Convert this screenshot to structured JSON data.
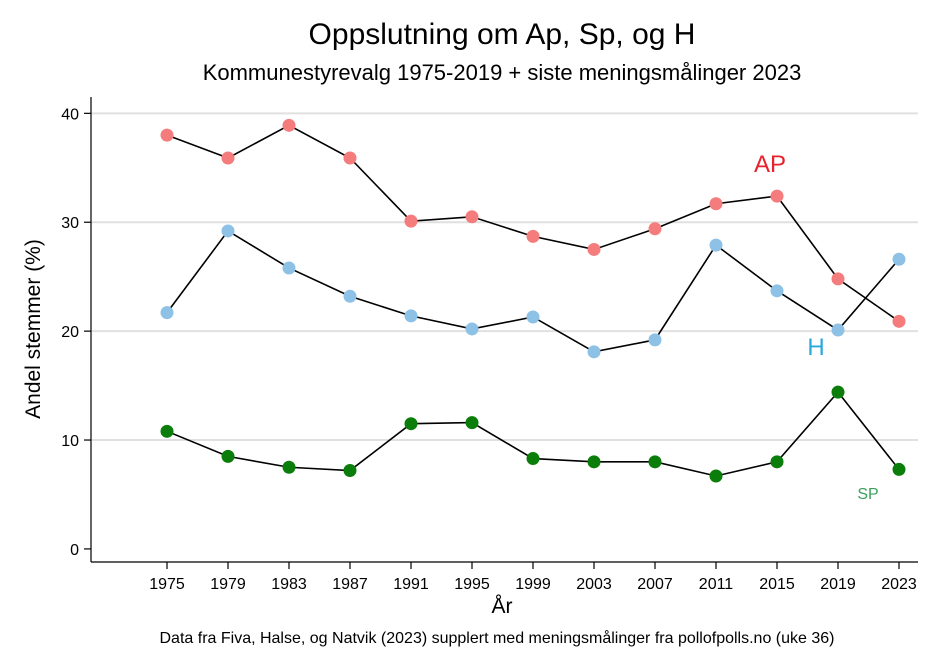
{
  "chart_data": {
    "type": "line",
    "title": "Oppslutning om Ap, Sp, og H",
    "subtitle": "Kommunestyrevalg 1975-2019 + siste meningsmålinger 2023",
    "xlabel": "År",
    "ylabel": "Andel stemmer (%)",
    "note": "Data fra Fiva, Halse, og Natvik (2023) supplert med meningsmålinger fra pollofpolls.no (uke 36)",
    "x": [
      "1975",
      "1979",
      "1983",
      "1987",
      "1991",
      "1995",
      "1999",
      "2003",
      "2007",
      "2011",
      "2015",
      "2019",
      "2023"
    ],
    "yticks": [
      0,
      10,
      20,
      30,
      40
    ],
    "ylim": [
      -1.2,
      41.5
    ],
    "grid": true,
    "series": [
      {
        "name": "AP",
        "color": "#f47c7c",
        "label_color": "#e8222a",
        "values": [
          38.0,
          35.9,
          38.9,
          35.9,
          30.1,
          30.5,
          28.7,
          27.5,
          29.4,
          31.7,
          32.4,
          24.8,
          20.9
        ]
      },
      {
        "name": "H",
        "color": "#8ec1e6",
        "label_color": "#2aa8dc",
        "values": [
          21.7,
          29.2,
          25.8,
          23.2,
          21.4,
          20.2,
          21.3,
          18.1,
          19.2,
          27.9,
          23.7,
          20.1,
          26.6
        ]
      },
      {
        "name": "SP",
        "color": "#0a7d0a",
        "label_color": "#3aa05a",
        "values": [
          10.8,
          8.5,
          7.5,
          7.2,
          11.5,
          11.6,
          8.3,
          8.0,
          8.0,
          6.7,
          8.0,
          14.4,
          7.3
        ]
      }
    ]
  }
}
